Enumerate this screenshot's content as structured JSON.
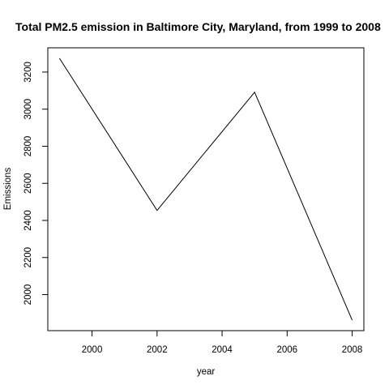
{
  "chart_data": {
    "type": "line",
    "title": "Total PM2.5 emission in Baltimore City, Maryland, from 1999 to 2008",
    "xlabel": "year",
    "ylabel": "Emissions",
    "x": [
      1999,
      2002,
      2005,
      2008
    ],
    "series": [
      {
        "values": [
          3274.18,
          2453.92,
          3091.35,
          1862.28
        ]
      }
    ],
    "xticks": [
      2000,
      2002,
      2004,
      2006,
      2008
    ],
    "yticks": [
      2000,
      2200,
      2400,
      2600,
      2800,
      3000,
      3200
    ],
    "xlim": [
      1998.64,
      2008.36
    ],
    "ylim": [
      1805.6,
      3330.8
    ],
    "grid": false,
    "line_color": "#000000"
  }
}
